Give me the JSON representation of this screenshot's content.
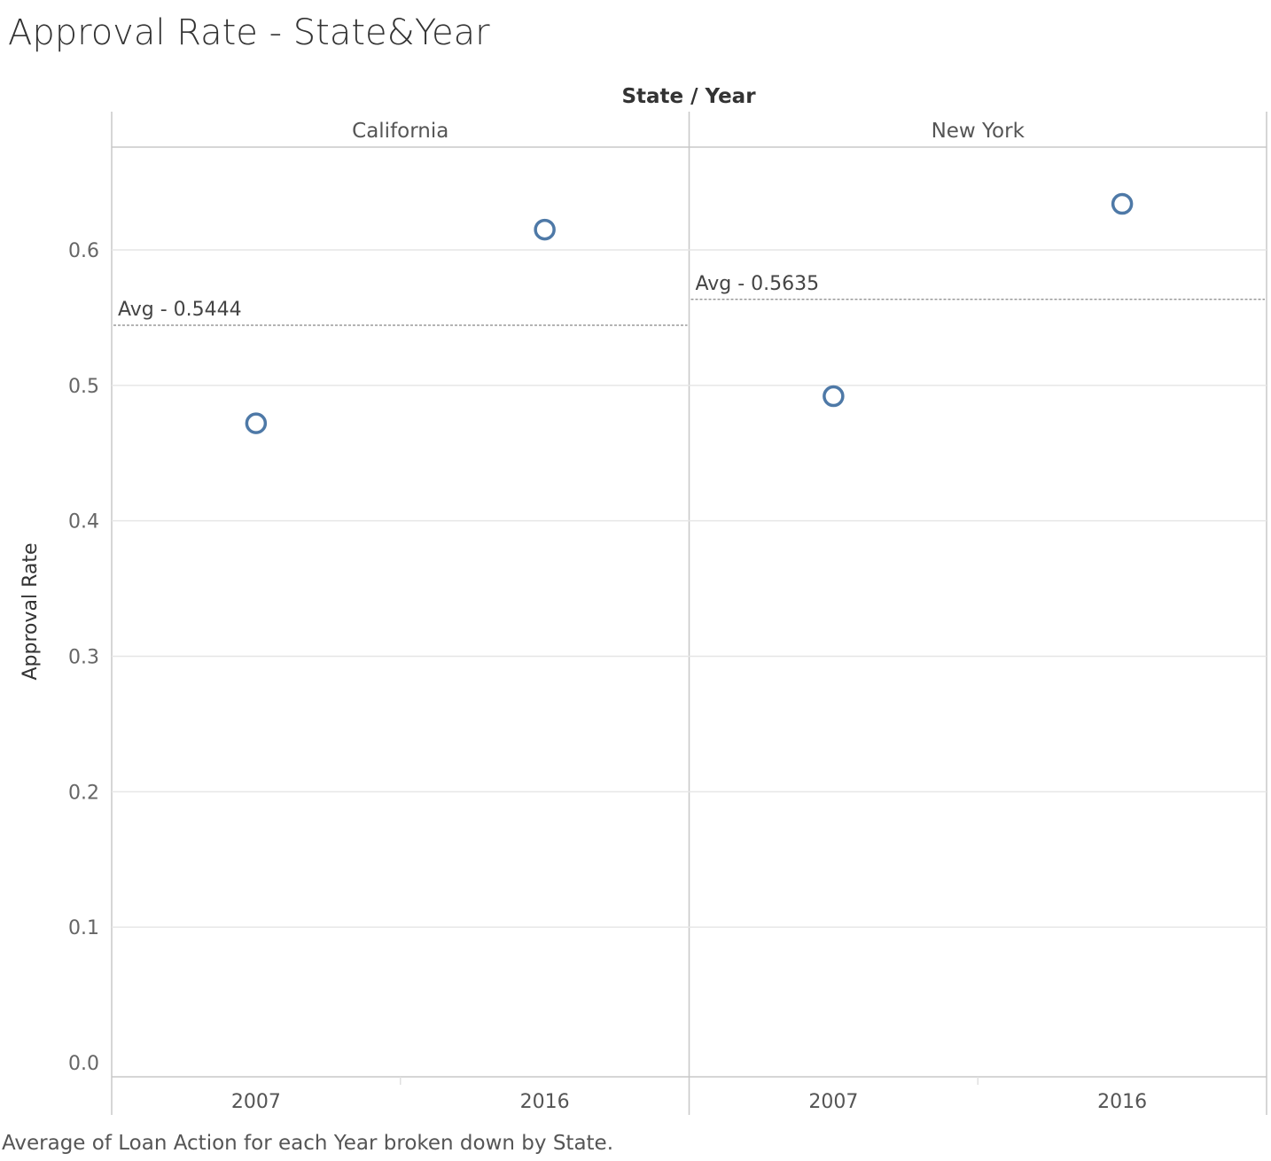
{
  "title": "Approval Rate - State&Year",
  "caption": "Average of Loan Action for each Year broken down by State.",
  "chart_data": {
    "type": "scatter",
    "column_header": "State  /  Year",
    "ylabel": "Approval Rate",
    "ylim": [
      0,
      0.675
    ],
    "y_ticks": [
      "0.0",
      "0.1",
      "0.2",
      "0.3",
      "0.4",
      "0.5",
      "0.6"
    ],
    "y_tick_values": [
      0,
      0.1,
      0.2,
      0.3,
      0.4,
      0.5,
      0.6
    ],
    "grid": true,
    "marker": "open-circle",
    "marker_color": "#4e79a7",
    "panels": [
      {
        "state": "California",
        "categories": [
          "2007",
          "2016"
        ],
        "values": [
          0.472,
          0.615
        ],
        "average_label": "Avg - 0.5444",
        "average": 0.5444
      },
      {
        "state": "New York",
        "categories": [
          "2007",
          "2016"
        ],
        "values": [
          0.492,
          0.634
        ],
        "average_label": "Avg - 0.5635",
        "average": 0.5635
      }
    ]
  }
}
